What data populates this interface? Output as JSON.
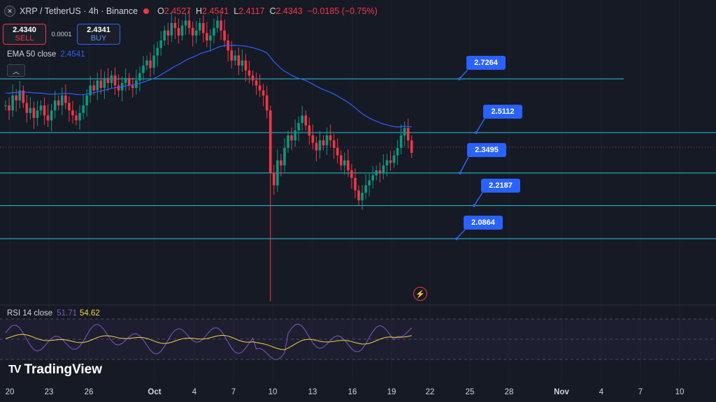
{
  "header": {
    "symbol_icon": "xrp-logo-icon",
    "title": "XRP / TetherUS · 4h · Binance",
    "ohlc": {
      "o_label": "O",
      "o": "2.4527",
      "h_label": "H",
      "h": "2.4541",
      "l_label": "L",
      "l": "2.4117",
      "c_label": "C",
      "c": "2.4343",
      "change": "−0.0185 (−0.75%)"
    }
  },
  "trade": {
    "sell_price": "2.4340",
    "sell_label": "SELL",
    "spread": "0.0001",
    "buy_price": "2.4341",
    "buy_label": "BUY"
  },
  "indicators": {
    "ema_label": "EMA 50 close",
    "ema_value": "2.4541",
    "rsi_label": "RSI 14 close",
    "rsi_value": "51.71",
    "rsi_ma_value": "54.62"
  },
  "brand": {
    "name": "TradingView",
    "icon": "tradingview-logo-icon"
  },
  "x_axis": [
    "20",
    "23",
    "26",
    "Oct",
    "4",
    "7",
    "10",
    "13",
    "16",
    "19",
    "22",
    "25",
    "28",
    "Nov",
    "4",
    "7",
    "10"
  ],
  "levels": [
    {
      "value": "2.7264",
      "color": "#26c6da"
    },
    {
      "value": "2.5112",
      "color": "#26c6da"
    },
    {
      "value": "2.3495",
      "color": "#26c6da"
    },
    {
      "value": "2.2187",
      "color": "#26c6da"
    },
    {
      "value": "2.0864",
      "color": "#26c6da"
    }
  ],
  "colors": {
    "up": "#089981",
    "down": "#f23645",
    "ema": "#2962ff",
    "rsi": "#7e57c2",
    "rsi_ma": "#f7d23e",
    "label_bg": "#2962ff"
  },
  "chart_data": {
    "type": "candlestick",
    "closes": [
      2.62,
      2.6,
      2.66,
      2.64,
      2.68,
      2.63,
      2.59,
      2.61,
      2.57,
      2.6,
      2.62,
      2.58,
      2.56,
      2.6,
      2.64,
      2.62,
      2.66,
      2.63,
      2.6,
      2.58,
      2.56,
      2.59,
      2.62,
      2.66,
      2.7,
      2.68,
      2.72,
      2.69,
      2.73,
      2.71,
      2.74,
      2.7,
      2.68,
      2.71,
      2.73,
      2.7,
      2.69,
      2.72,
      2.75,
      2.78,
      2.8,
      2.77,
      2.82,
      2.85,
      2.88,
      2.92,
      2.9,
      2.95,
      2.93,
      2.9,
      2.94,
      2.96,
      2.93,
      2.9,
      2.92,
      2.95,
      2.91,
      2.88,
      2.9,
      2.93,
      2.96,
      2.92,
      2.88,
      2.84,
      2.8,
      2.82,
      2.78,
      2.8,
      2.76,
      2.74,
      2.72,
      2.7,
      2.68,
      2.66,
      2.6,
      2.35,
      2.3,
      2.4,
      2.38,
      2.45,
      2.5,
      2.48,
      2.52,
      2.55,
      2.58,
      2.54,
      2.5,
      2.47,
      2.44,
      2.48,
      2.46,
      2.5,
      2.48,
      2.45,
      2.42,
      2.38,
      2.4,
      2.36,
      2.33,
      2.28,
      2.24,
      2.27,
      2.3,
      2.32,
      2.34,
      2.36,
      2.35,
      2.38,
      2.4,
      2.39,
      2.42,
      2.45,
      2.5,
      2.53,
      2.48,
      2.43
    ],
    "ema50_last": 2.4541,
    "rsi_last": 51.71,
    "rsi_ma_last": 54.62
  }
}
